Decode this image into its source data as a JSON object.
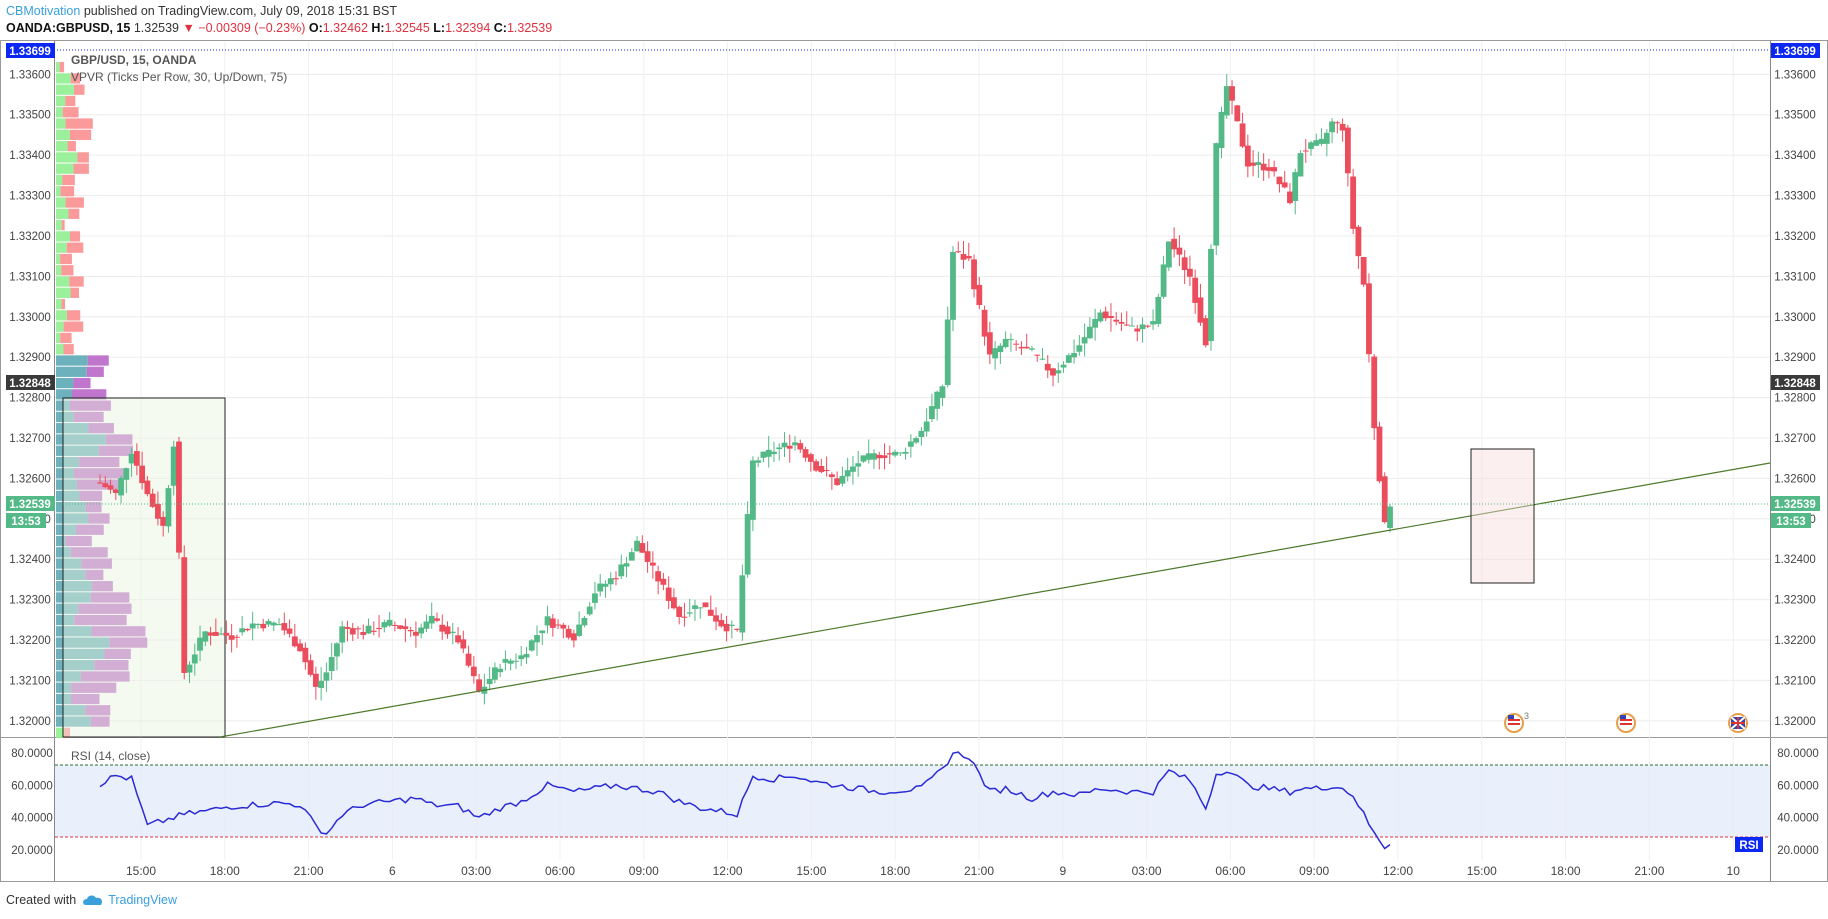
{
  "header": {
    "author": "CBMotivation",
    "published": "published on TradingView.com, July 09, 2018 15:31 BST",
    "symbol": "OANDA:GBPUSD, 15",
    "last": "1.32539",
    "change": "▼ −0.00309 (−0.23%)",
    "o_label": "O:",
    "o": "1.32462",
    "h_label": "H:",
    "h": "1.32545",
    "l_label": "L:",
    "l": "1.32394",
    "c_label": "C:",
    "c": "1.32539"
  },
  "pane_title": "GBP/USD, 15, OANDA",
  "vpvr_label": "VPVR (Ticks Per Row, 30, Up/Down, 75)",
  "rsi_label": "RSI (14, close)",
  "rsi_tag": "RSI",
  "price_badges": {
    "top": "1.33699",
    "mid": "1.32848",
    "last": "1.32539",
    "countdown": "13:53"
  },
  "footer": {
    "created_with": "Created with",
    "brand": "TradingView"
  },
  "colors": {
    "up": "#53b987",
    "down": "#eb4d5c",
    "vp_up": "#90ee90",
    "vp_down": "#f98f8f",
    "vp_up_va": "#5ca9b4",
    "vp_down_va": "#b967c7",
    "rsi_line": "#2b2bd6",
    "trendline": "#4e7a2b",
    "badge_blue": "#0d28f2",
    "badge_green": "#53b987",
    "badge_dark": "#3a3a3a"
  },
  "chart_data": {
    "type": "candlestick",
    "y_ticks": [
      "1.32000",
      "1.32100",
      "1.32200",
      "1.32300",
      "1.32400",
      "1.32500",
      "1.32600",
      "1.32700",
      "1.32800",
      "1.32900",
      "1.33000",
      "1.33100",
      "1.33200",
      "1.33300",
      "1.33400",
      "1.33500",
      "1.33600"
    ],
    "y_tick_values": [
      1.32,
      1.321,
      1.322,
      1.323,
      1.324,
      1.325,
      1.326,
      1.327,
      1.328,
      1.329,
      1.33,
      1.331,
      1.332,
      1.333,
      1.334,
      1.335,
      1.336
    ],
    "ylim": [
      1.3196,
      1.3368
    ],
    "x_ticks": [
      "15:00",
      "18:00",
      "21:00",
      "6",
      "03:00",
      "06:00",
      "09:00",
      "12:00",
      "15:00",
      "18:00",
      "21:00",
      "9",
      "03:00",
      "06:00",
      "09:00",
      "12:00",
      "15:00",
      "18:00",
      "21:00",
      "10"
    ],
    "keypoints": [
      [
        0,
        1.3259
      ],
      [
        3,
        1.3256
      ],
      [
        6,
        1.3267
      ],
      [
        9,
        1.3256
      ],
      [
        12,
        1.3248
      ],
      [
        14,
        1.3269
      ],
      [
        16,
        1.3212
      ],
      [
        20,
        1.3222
      ],
      [
        25,
        1.3221
      ],
      [
        29,
        1.3224
      ],
      [
        34,
        1.3224
      ],
      [
        38,
        1.3218
      ],
      [
        41,
        1.3208
      ],
      [
        43,
        1.3212
      ],
      [
        46,
        1.3223
      ],
      [
        50,
        1.3222
      ],
      [
        55,
        1.3224
      ],
      [
        60,
        1.3222
      ],
      [
        63,
        1.3225
      ],
      [
        68,
        1.322
      ],
      [
        72,
        1.3207
      ],
      [
        76,
        1.3214
      ],
      [
        80,
        1.3216
      ],
      [
        85,
        1.3225
      ],
      [
        90,
        1.3221
      ],
      [
        94,
        1.3232
      ],
      [
        98,
        1.3236
      ],
      [
        102,
        1.3244
      ],
      [
        106,
        1.3235
      ],
      [
        110,
        1.3226
      ],
      [
        114,
        1.3229
      ],
      [
        118,
        1.3224
      ],
      [
        121,
        1.3222
      ],
      [
        124,
        1.3264
      ],
      [
        128,
        1.3267
      ],
      [
        132,
        1.3269
      ],
      [
        136,
        1.3263
      ],
      [
        140,
        1.3259
      ],
      [
        144,
        1.3264
      ],
      [
        148,
        1.3266
      ],
      [
        152,
        1.3266
      ],
      [
        156,
        1.3272
      ],
      [
        160,
        1.3283
      ],
      [
        162,
        1.3316
      ],
      [
        165,
        1.3314
      ],
      [
        169,
        1.329
      ],
      [
        172,
        1.3294
      ],
      [
        177,
        1.3291
      ],
      [
        181,
        1.3286
      ],
      [
        186,
        1.3293
      ],
      [
        190,
        1.3301
      ],
      [
        196,
        1.3297
      ],
      [
        200,
        1.3298
      ],
      [
        203,
        1.3319
      ],
      [
        207,
        1.331
      ],
      [
        210,
        1.3294
      ],
      [
        212,
        1.3342
      ],
      [
        214,
        1.3357
      ],
      [
        218,
        1.3338
      ],
      [
        222,
        1.3337
      ],
      [
        226,
        1.3329
      ],
      [
        228,
        1.3341
      ],
      [
        232,
        1.3343
      ],
      [
        234,
        1.3348
      ],
      [
        236,
        1.3347
      ],
      [
        238,
        1.3322
      ],
      [
        240,
        1.3308
      ],
      [
        242,
        1.3273
      ],
      [
        244,
        1.3248
      ],
      [
        245,
        1.3254
      ]
    ],
    "rsi_ticks": [
      "20.0000",
      "40.0000",
      "60.0000",
      "80.0000"
    ],
    "rsi_tick_values": [
      20,
      40,
      60,
      80
    ],
    "rsi_overbought": 70,
    "rsi_oversold": 30,
    "rsi_keypoints": [
      [
        0,
        61
      ],
      [
        3,
        66
      ],
      [
        6,
        64
      ],
      [
        9,
        35
      ],
      [
        12,
        38
      ],
      [
        16,
        42
      ],
      [
        20,
        44
      ],
      [
        25,
        47
      ],
      [
        29,
        48
      ],
      [
        34,
        49
      ],
      [
        38,
        48
      ],
      [
        41,
        35
      ],
      [
        43,
        30
      ],
      [
        46,
        42
      ],
      [
        50,
        48
      ],
      [
        55,
        50
      ],
      [
        60,
        52
      ],
      [
        63,
        48
      ],
      [
        68,
        47
      ],
      [
        72,
        40
      ],
      [
        76,
        46
      ],
      [
        80,
        50
      ],
      [
        85,
        60
      ],
      [
        90,
        56
      ],
      [
        94,
        58
      ],
      [
        98,
        60
      ],
      [
        102,
        58
      ],
      [
        106,
        56
      ],
      [
        110,
        50
      ],
      [
        114,
        46
      ],
      [
        118,
        44
      ],
      [
        121,
        42
      ],
      [
        124,
        66
      ],
      [
        128,
        64
      ],
      [
        132,
        66
      ],
      [
        136,
        62
      ],
      [
        140,
        60
      ],
      [
        144,
        58
      ],
      [
        148,
        56
      ],
      [
        152,
        57
      ],
      [
        156,
        58
      ],
      [
        160,
        70
      ],
      [
        162,
        80
      ],
      [
        165,
        78
      ],
      [
        169,
        56
      ],
      [
        172,
        58
      ],
      [
        177,
        52
      ],
      [
        181,
        56
      ],
      [
        186,
        54
      ],
      [
        190,
        58
      ],
      [
        196,
        56
      ],
      [
        200,
        56
      ],
      [
        203,
        69
      ],
      [
        207,
        63
      ],
      [
        210,
        46
      ],
      [
        212,
        67
      ],
      [
        214,
        70
      ],
      [
        218,
        60
      ],
      [
        222,
        58
      ],
      [
        226,
        56
      ],
      [
        228,
        58
      ],
      [
        232,
        58
      ],
      [
        234,
        60
      ],
      [
        236,
        58
      ],
      [
        238,
        54
      ],
      [
        240,
        42
      ],
      [
        242,
        30
      ],
      [
        244,
        22
      ],
      [
        245,
        24
      ]
    ]
  }
}
